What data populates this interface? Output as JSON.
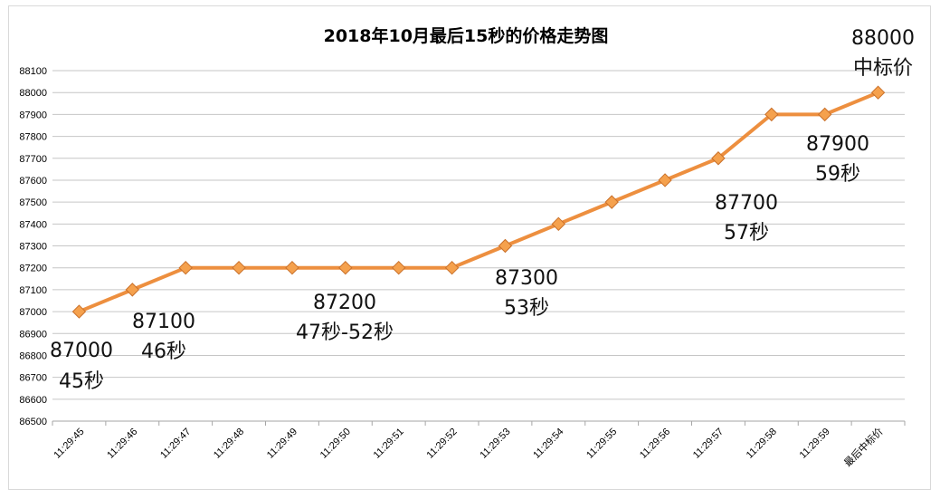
{
  "chart_data": {
    "type": "line",
    "title": "2018年10月最后15秒的价格走势图",
    "categories": [
      "11:29:45",
      "11:29:46",
      "11:29:47",
      "11:29:48",
      "11:29:49",
      "11:29:50",
      "11:29:51",
      "11:29:52",
      "11:29:53",
      "11:29:54",
      "11:29:55",
      "11:29:56",
      "11:29:57",
      "11:29:58",
      "11:29:59",
      "最后中标价"
    ],
    "values": [
      87000,
      87100,
      87200,
      87200,
      87200,
      87200,
      87200,
      87200,
      87300,
      87400,
      87500,
      87600,
      87700,
      87900,
      87900,
      88000
    ],
    "ylim": [
      86500,
      88100
    ],
    "ytick_step": 100,
    "grid": true,
    "line_color": "#ed8f3f",
    "marker_color": "#f5a14d",
    "annotations": [
      {
        "index": 0,
        "lines": [
          "87000",
          "45秒"
        ]
      },
      {
        "index": 1,
        "lines": [
          "87100",
          "46秒"
        ]
      },
      {
        "index": 5,
        "lines": [
          "87200",
          "47秒-52秒"
        ]
      },
      {
        "index": 8,
        "lines": [
          "87300",
          "53秒"
        ]
      },
      {
        "index": 12,
        "lines": [
          "87700",
          "57秒"
        ]
      },
      {
        "index": 14,
        "lines": [
          "87900",
          "59秒"
        ]
      },
      {
        "index": 15,
        "lines": [
          "88000",
          "中标价"
        ]
      }
    ]
  }
}
